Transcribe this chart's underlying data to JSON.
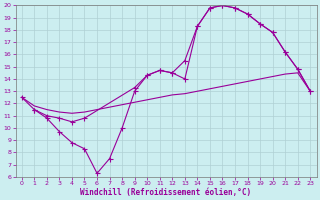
{
  "xlabel": "Windchill (Refroidissement éolien,°C)",
  "bg_color": "#cceef0",
  "grid_color": "#b0d0d4",
  "line_color": "#990099",
  "line1_x": [
    0,
    1,
    2,
    3,
    4,
    5,
    6,
    7,
    8,
    9,
    10,
    11,
    12,
    13,
    14,
    15,
    16,
    17,
    18,
    19,
    20,
    21,
    22,
    23
  ],
  "line1_y": [
    12.5,
    11.5,
    10.8,
    9.7,
    8.8,
    8.3,
    6.3,
    7.5,
    10.0,
    13.0,
    14.3,
    14.7,
    14.5,
    15.5,
    18.3,
    19.8,
    20.0,
    19.8,
    19.3,
    18.5,
    17.8,
    16.2,
    14.8,
    13.0
  ],
  "line2_x": [
    0,
    1,
    2,
    3,
    4,
    5,
    6,
    7,
    8,
    9,
    10,
    11,
    12,
    13,
    14,
    15,
    16,
    17,
    18,
    19,
    20,
    21,
    22,
    23
  ],
  "line2_y": [
    12.5,
    11.8,
    11.5,
    11.3,
    11.2,
    11.3,
    11.5,
    11.7,
    11.9,
    12.1,
    12.3,
    12.5,
    12.7,
    12.8,
    13.0,
    13.2,
    13.4,
    13.6,
    13.8,
    14.0,
    14.2,
    14.4,
    14.5,
    13.0
  ],
  "line3_x": [
    1,
    2,
    3,
    4,
    5,
    9,
    10,
    11,
    12,
    13,
    14,
    15,
    16,
    17,
    18,
    19,
    20,
    21,
    22,
    23
  ],
  "line3_y": [
    11.5,
    11.0,
    10.8,
    10.5,
    10.8,
    13.3,
    14.3,
    14.7,
    14.5,
    14.0,
    18.3,
    19.8,
    20.0,
    19.8,
    19.3,
    18.5,
    17.8,
    16.2,
    14.8,
    13.0
  ],
  "xlim": [
    -0.5,
    23.5
  ],
  "ylim": [
    6,
    20
  ],
  "yticks": [
    6,
    7,
    8,
    9,
    10,
    11,
    12,
    13,
    14,
    15,
    16,
    17,
    18,
    19,
    20
  ],
  "xticks": [
    0,
    1,
    2,
    3,
    4,
    5,
    6,
    7,
    8,
    9,
    10,
    11,
    12,
    13,
    14,
    15,
    16,
    17,
    18,
    19,
    20,
    21,
    22,
    23
  ]
}
